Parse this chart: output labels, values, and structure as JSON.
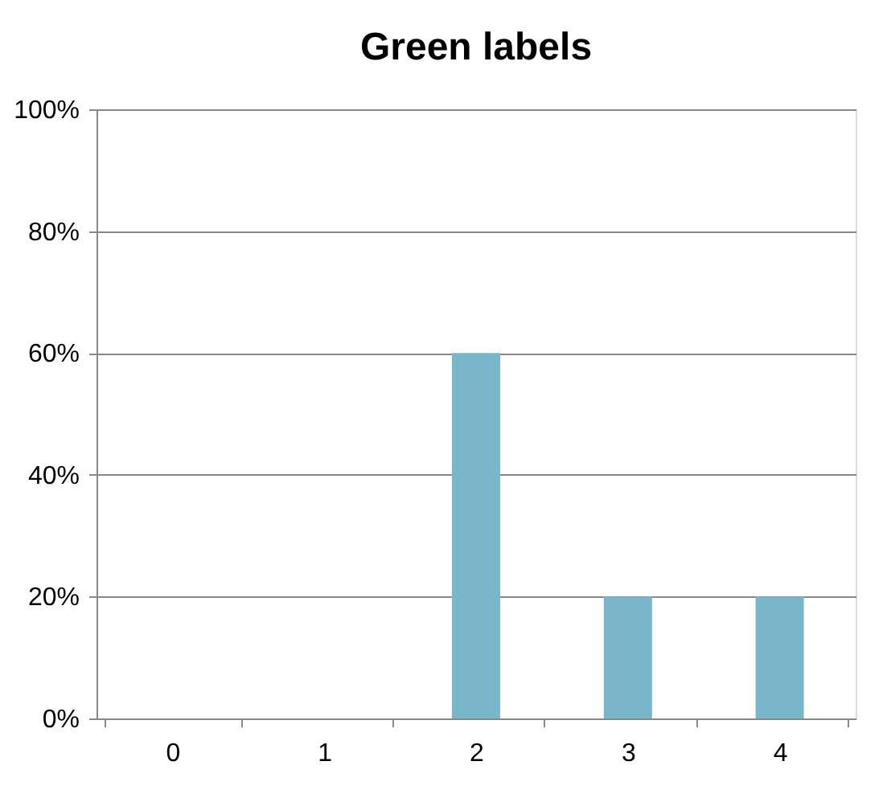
{
  "chart_data": {
    "type": "bar",
    "title": "Green labels",
    "categories": [
      "0",
      "1",
      "2",
      "3",
      "4"
    ],
    "values": [
      0,
      0,
      60,
      20,
      20
    ],
    "color": "#7ab6c9",
    "ylim": [
      0,
      100
    ],
    "yticks": [
      {
        "value": 0,
        "label": "0%"
      },
      {
        "value": 20,
        "label": "20%"
      },
      {
        "value": 40,
        "label": "40%"
      },
      {
        "value": 60,
        "label": "60%"
      },
      {
        "value": 80,
        "label": "80%"
      },
      {
        "value": 100,
        "label": "100%"
      }
    ],
    "grid": "y"
  }
}
